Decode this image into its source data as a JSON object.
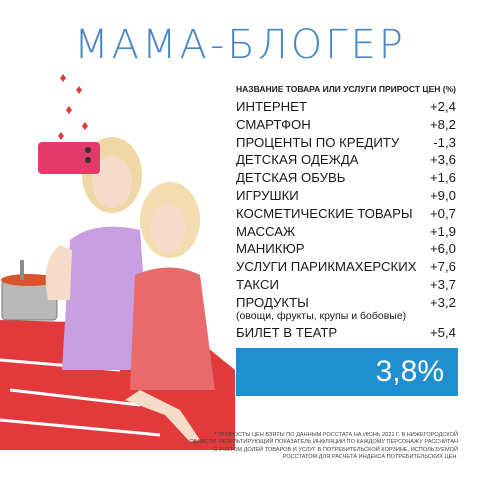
{
  "title": "МАМА-БЛОГЕР",
  "table": {
    "col_item": "НАЗВАНИЕ ТОВАРА ИЛИ УСЛУГИ",
    "col_growth": "ПРИРОСТ ЦЕН (%)",
    "rows": [
      {
        "name": "ИНТЕРНЕТ",
        "value": "+2,4"
      },
      {
        "name": "СМАРТФОН",
        "value": "+8,2"
      },
      {
        "name": "ПРОЦЕНТЫ ПО КРЕДИТУ",
        "value": "-1,3"
      },
      {
        "name": "ДЕТСКАЯ ОДЕЖДА",
        "value": "+3,6"
      },
      {
        "name": "ДЕТСКАЯ ОБУВЬ",
        "value": "+1,6"
      },
      {
        "name": "ИГРУШКИ",
        "value": "+9,0"
      },
      {
        "name": "КОСМЕТИЧЕСКИЕ ТОВАРЫ",
        "value": "+0,7"
      },
      {
        "name": "МАССАЖ",
        "value": "+1,9"
      },
      {
        "name": "МАНИКЮР",
        "value": "+6,0"
      },
      {
        "name": "УСЛУГИ ПАРИКМАХЕРСКИХ",
        "value": "+7,6"
      },
      {
        "name": "ТАКСИ",
        "value": "+3,7"
      },
      {
        "name": "ПРОДУКТЫ",
        "value": "+3,2",
        "note": "(овощи, фрукты, крупы и бобовые)"
      },
      {
        "name": "БИЛЕТ В ТЕАТР",
        "value": "+5,4"
      }
    ]
  },
  "total": "3,8%",
  "footnote": "* ПРИРОСТЫ ЦЕН ВЗЯТЫ ПО ДАННЫМ РОССТАТА НА ИЮНЬ 2021 Г. В НИЖЕГОРОДСКОЙ ОБЛАСТИ. РЕЗУЛЬТИРУЮЩИЙ ПОКАЗАТЕЛЬ ИНФЛЯЦИИ ПО КАЖДОМУ ПЕРСОНАЖУ РАССЧИТАН С УЧЕТОМ ДОЛЕЙ ТОВАРОВ И УСЛУГ В ПОТРЕБИТЕЛЬСКОЙ КОРЗИНЕ, ИСПОЛЬЗУЕМОЙ РОССТАТОМ ДЛЯ РАСЧЕТА ИНДЕКСА ПОТРЕБИТЕЛЬСКИХ ЦЕН.",
  "colors": {
    "title": "#4a86c5",
    "badge": "#1f8fcf",
    "accent_red": "#e23a3a"
  }
}
